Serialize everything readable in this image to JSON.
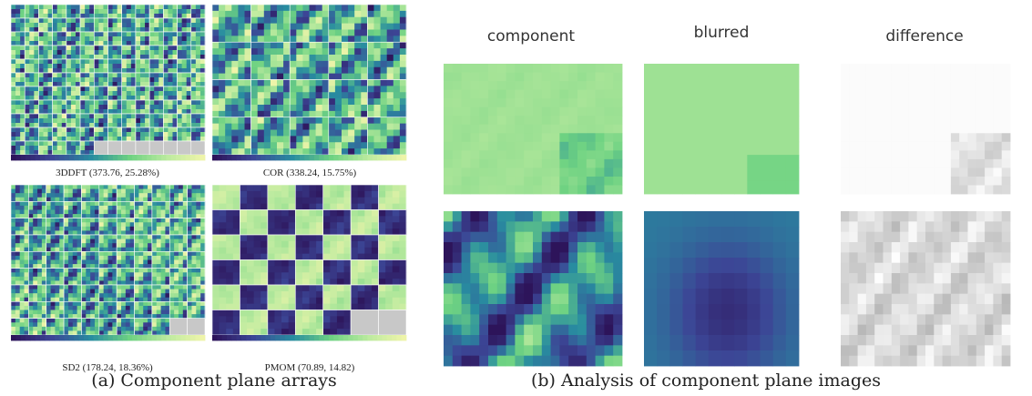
{
  "panel_a": {
    "caption": "(a) Component plane arrays",
    "arrays": [
      {
        "label": "3DDFT (373.76, 25.28%)"
      },
      {
        "label": "COR (338.24, 15.75%)"
      },
      {
        "label": "SD2 (178.24, 18.36%)"
      },
      {
        "label": "PMOM (70.89, 14.82)"
      }
    ]
  },
  "panel_b": {
    "caption": "(b) Analysis of component plane images",
    "columns": [
      "component",
      "blurred",
      "difference"
    ]
  }
}
